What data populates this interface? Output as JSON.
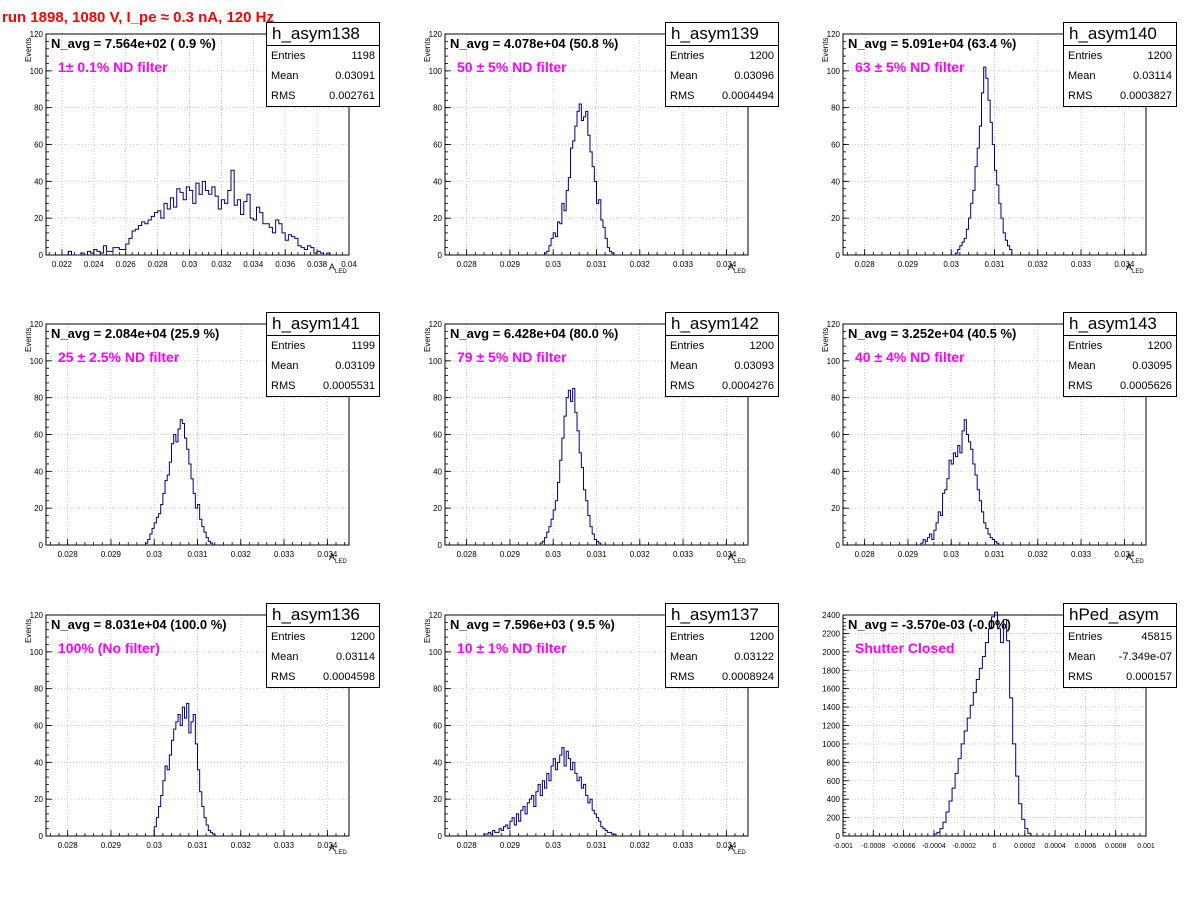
{
  "header": {
    "run_title": "run 1898,  1080 V, I_pe ≈ 0.3 nA, 120 Hz"
  },
  "colors": {
    "histogram_line": "#000080",
    "title": "#ff0000",
    "annotation": "#ff00ff",
    "grid": "#c0c0c0"
  },
  "chart_data": [
    {
      "type": "histogram",
      "name": "h_asym138",
      "stats": {
        "entries": "1198",
        "mean": "0.03091",
        "rms": "0.002761"
      },
      "navg_text": "N_avg = 7.564e+02 ( 0.9 %)",
      "filter_text": "1± 0.1% ND filter",
      "ylabel": "Events",
      "xlabel": "A",
      "xlabel_sub": "LED",
      "xlim": [
        0.021,
        0.04
      ],
      "ylim": [
        0,
        120
      ],
      "xticks": [
        0.022,
        0.024,
        0.026,
        0.028,
        0.03,
        0.032,
        0.034,
        0.036,
        0.038,
        0.04
      ],
      "xtick_labels": [
        "0.022",
        "0.024",
        "0.026",
        "0.028",
        "0.03",
        "0.032",
        "0.034",
        "0.036",
        "0.038",
        "0.04"
      ],
      "yticks": [
        0,
        20,
        40,
        60,
        80,
        100,
        120
      ],
      "ytick_labels": [
        "0",
        "20",
        "40",
        "60",
        "80",
        "100",
        "120"
      ],
      "x_start": 0.0224,
      "bin_width": 0.0002,
      "counts": [
        2,
        0,
        0,
        0,
        1,
        0,
        2,
        1,
        3,
        2,
        1,
        5,
        2,
        2,
        4,
        4,
        3,
        3,
        6,
        9,
        13,
        14,
        16,
        18,
        17,
        19,
        21,
        23,
        24,
        20,
        28,
        25,
        31,
        26,
        36,
        34,
        30,
        37,
        35,
        28,
        39,
        33,
        40,
        35,
        33,
        37,
        32,
        25,
        30,
        28,
        35,
        46,
        27,
        30,
        22,
        29,
        33,
        20,
        19,
        26,
        23,
        17,
        17,
        15,
        12,
        19,
        17,
        12,
        8,
        11,
        10,
        9,
        5,
        4,
        3,
        5,
        4,
        1,
        2,
        1,
        0,
        1
      ]
    },
    {
      "type": "histogram",
      "name": "h_asym139",
      "stats": {
        "entries": "1200",
        "mean": "0.03096",
        "rms": "0.0004494"
      },
      "navg_text": "N_avg = 4.078e+04 (50.8 %)",
      "filter_text": "50 ± 5% ND filter",
      "ylabel": "Events",
      "xlabel": "A",
      "xlabel_sub": "LED",
      "xlim": [
        0.0275,
        0.0345
      ],
      "ylim": [
        0,
        120
      ],
      "xticks": [
        0.028,
        0.029,
        0.03,
        0.031,
        0.032,
        0.033,
        0.034
      ],
      "xtick_labels": [
        "0.028",
        "0.029",
        "0.03",
        "0.031",
        "0.032",
        "0.033",
        "0.034"
      ],
      "yticks": [
        0,
        20,
        40,
        60,
        80,
        100,
        120
      ],
      "ytick_labels": [
        "0",
        "20",
        "40",
        "60",
        "80",
        "100",
        "120"
      ],
      "x_start": 0.0298,
      "bin_width": 5e-05,
      "counts": [
        1,
        2,
        5,
        9,
        12,
        10,
        18,
        17,
        28,
        24,
        35,
        42,
        58,
        62,
        70,
        78,
        82,
        73,
        75,
        78,
        65,
        56,
        48,
        40,
        28,
        30,
        19,
        15,
        9,
        4,
        2,
        1
      ]
    },
    {
      "type": "histogram",
      "name": "h_asym140",
      "stats": {
        "entries": "1200",
        "mean": "0.03114",
        "rms": "0.0003827"
      },
      "navg_text": "N_avg = 5.091e+04 (63.4 %)",
      "filter_text": "63 ± 5% ND filter",
      "ylabel": "Events",
      "xlabel": "A",
      "xlabel_sub": "LED",
      "xlim": [
        0.0275,
        0.0345
      ],
      "ylim": [
        0,
        120
      ],
      "xticks": [
        0.028,
        0.029,
        0.03,
        0.031,
        0.032,
        0.033,
        0.034
      ],
      "xtick_labels": [
        "0.028",
        "0.029",
        "0.03",
        "0.031",
        "0.032",
        "0.033",
        "0.034"
      ],
      "yticks": [
        0,
        20,
        40,
        60,
        80,
        100,
        120
      ],
      "ytick_labels": [
        "0",
        "20",
        "40",
        "60",
        "80",
        "100",
        "120"
      ],
      "x_start": 0.0301,
      "bin_width": 5e-05,
      "counts": [
        1,
        3,
        5,
        7,
        9,
        14,
        20,
        28,
        35,
        48,
        58,
        70,
        88,
        102,
        96,
        84,
        72,
        60,
        46,
        38,
        28,
        20,
        12,
        8,
        5,
        3
      ]
    },
    {
      "type": "histogram",
      "name": "h_asym141",
      "stats": {
        "entries": "1199",
        "mean": "0.03109",
        "rms": "0.0005531"
      },
      "navg_text": "N_avg = 2.084e+04 (25.9 %)",
      "filter_text": "25 ± 2.5% ND filter",
      "ylabel": "Events",
      "xlabel": "A",
      "xlabel_sub": "LED",
      "xlim": [
        0.0275,
        0.0345
      ],
      "ylim": [
        0,
        120
      ],
      "xticks": [
        0.028,
        0.029,
        0.03,
        0.031,
        0.032,
        0.033,
        0.034
      ],
      "xtick_labels": [
        "0.028",
        "0.029",
        "0.03",
        "0.031",
        "0.032",
        "0.033",
        "0.034"
      ],
      "yticks": [
        0,
        20,
        40,
        60,
        80,
        100,
        120
      ],
      "ytick_labels": [
        "0",
        "20",
        "40",
        "60",
        "80",
        "100",
        "120"
      ],
      "x_start": 0.0298,
      "bin_width": 5e-05,
      "counts": [
        1,
        3,
        6,
        9,
        12,
        15,
        17,
        22,
        28,
        35,
        38,
        45,
        55,
        60,
        56,
        63,
        68,
        66,
        58,
        52,
        44,
        36,
        28,
        20,
        22,
        14,
        10,
        7,
        4,
        2,
        1
      ]
    },
    {
      "type": "histogram",
      "name": "h_asym142",
      "stats": {
        "entries": "1200",
        "mean": "0.03093",
        "rms": "0.0004276"
      },
      "navg_text": "N_avg = 6.428e+04 (80.0 %)",
      "filter_text": "79 ± 5% ND filter",
      "ylabel": "Events",
      "xlabel": "A",
      "xlabel_sub": "LED",
      "xlim": [
        0.0275,
        0.0345
      ],
      "ylim": [
        0,
        120
      ],
      "xticks": [
        0.028,
        0.029,
        0.03,
        0.031,
        0.032,
        0.033,
        0.034
      ],
      "xtick_labels": [
        "0.028",
        "0.029",
        "0.03",
        "0.031",
        "0.032",
        "0.033",
        "0.034"
      ],
      "yticks": [
        0,
        20,
        40,
        60,
        80,
        100,
        120
      ],
      "ytick_labels": [
        "0",
        "20",
        "40",
        "60",
        "80",
        "100",
        "120"
      ],
      "x_start": 0.0297,
      "bin_width": 5e-05,
      "counts": [
        1,
        2,
        4,
        7,
        10,
        14,
        19,
        24,
        34,
        46,
        58,
        70,
        80,
        84,
        78,
        85,
        72,
        62,
        50,
        42,
        30,
        24,
        16,
        10,
        6,
        3,
        2,
        1
      ]
    },
    {
      "type": "histogram",
      "name": "h_asym143",
      "stats": {
        "entries": "1200",
        "mean": "0.03095",
        "rms": "0.0005626"
      },
      "navg_text": "N_avg = 3.252e+04 (40.5 %)",
      "filter_text": "40 ± 4% ND filter",
      "ylabel": "Events",
      "xlabel": "A",
      "xlabel_sub": "LED",
      "xlim": [
        0.0275,
        0.0345
      ],
      "ylim": [
        0,
        120
      ],
      "xticks": [
        0.028,
        0.029,
        0.03,
        0.031,
        0.032,
        0.033,
        0.034
      ],
      "xtick_labels": [
        "0.028",
        "0.029",
        "0.03",
        "0.031",
        "0.032",
        "0.033",
        "0.034"
      ],
      "yticks": [
        0,
        20,
        40,
        60,
        80,
        100,
        120
      ],
      "ytick_labels": [
        "0",
        "20",
        "40",
        "60",
        "80",
        "100",
        "120"
      ],
      "x_start": 0.0293,
      "bin_width": 5e-05,
      "counts": [
        1,
        3,
        2,
        4,
        6,
        3,
        8,
        12,
        18,
        16,
        28,
        30,
        36,
        46,
        44,
        50,
        48,
        54,
        50,
        62,
        68,
        60,
        56,
        52,
        44,
        38,
        30,
        24,
        18,
        12,
        9,
        6,
        4,
        3,
        2,
        1
      ]
    },
    {
      "type": "histogram",
      "name": "h_asym136",
      "stats": {
        "entries": "1200",
        "mean": "0.03114",
        "rms": "0.0004598"
      },
      "navg_text": "N_avg = 8.031e+04 (100.0 %)",
      "filter_text": "100% (No filter)",
      "ylabel": "Events",
      "xlabel": "A",
      "xlabel_sub": "LED",
      "xlim": [
        0.0275,
        0.0345
      ],
      "ylim": [
        0,
        120
      ],
      "xticks": [
        0.028,
        0.029,
        0.03,
        0.031,
        0.032,
        0.033,
        0.034
      ],
      "xtick_labels": [
        "0.028",
        "0.029",
        "0.03",
        "0.031",
        "0.032",
        "0.033",
        "0.034"
      ],
      "yticks": [
        0,
        20,
        40,
        60,
        80,
        100,
        120
      ],
      "ytick_labels": [
        "0",
        "20",
        "40",
        "60",
        "80",
        "100",
        "120"
      ],
      "x_start": 0.03,
      "bin_width": 5e-05,
      "counts": [
        5,
        10,
        16,
        22,
        30,
        38,
        36,
        44,
        52,
        58,
        62,
        66,
        60,
        70,
        64,
        72,
        56,
        62,
        66,
        50,
        36,
        24,
        16,
        10,
        6,
        3,
        2,
        1
      ]
    },
    {
      "type": "histogram",
      "name": "h_asym137",
      "stats": {
        "entries": "1200",
        "mean": "0.03122",
        "rms": "0.0008924"
      },
      "navg_text": "N_avg = 7.596e+03 ( 9.5 %)",
      "filter_text": "10 ± 1% ND filter",
      "ylabel": "Events",
      "xlabel": "A",
      "xlabel_sub": "LED",
      "xlim": [
        0.0275,
        0.0345
      ],
      "ylim": [
        0,
        120
      ],
      "xticks": [
        0.028,
        0.029,
        0.03,
        0.031,
        0.032,
        0.033,
        0.034
      ],
      "xtick_labels": [
        "0.028",
        "0.029",
        "0.03",
        "0.031",
        "0.032",
        "0.033",
        "0.034"
      ],
      "yticks": [
        0,
        20,
        40,
        60,
        80,
        100,
        120
      ],
      "ytick_labels": [
        "0",
        "20",
        "40",
        "60",
        "80",
        "100",
        "120"
      ],
      "x_start": 0.0284,
      "bin_width": 5e-05,
      "counts": [
        1,
        1,
        2,
        1,
        3,
        2,
        2,
        4,
        3,
        5,
        6,
        4,
        8,
        10,
        6,
        12,
        8,
        14,
        16,
        12,
        18,
        20,
        22,
        16,
        24,
        28,
        22,
        30,
        26,
        34,
        30,
        38,
        42,
        36,
        40,
        44,
        48,
        38,
        46,
        42,
        36,
        40,
        34,
        30,
        32,
        26,
        28,
        22,
        18,
        20,
        14,
        12,
        10,
        8,
        5,
        4,
        3,
        2,
        2,
        1,
        1
      ]
    },
    {
      "type": "histogram",
      "name": "hPed_asym",
      "stats": {
        "entries": "45815",
        "mean": "-7.349e-07",
        "rms": "0.000157"
      },
      "navg_text": "N_avg = -3.570e-03 (-0.0%)",
      "filter_text": "Shutter Closed",
      "ylabel": "",
      "xlabel": "",
      "xlabel_sub": "",
      "xlim": [
        -0.001,
        0.001
      ],
      "ylim": [
        0,
        2400
      ],
      "xticks": [
        -0.001,
        -0.0008,
        -0.0006,
        -0.0004,
        -0.0002,
        0,
        0.0002,
        0.0004,
        0.0006,
        0.0008,
        0.001
      ],
      "xtick_labels": [
        "-0.001",
        "-0.0008",
        "-0.0006",
        "-0.0004",
        "-0.0002",
        "0",
        "0.0002",
        "0.0004",
        "0.0006",
        "0.0008",
        "0.001"
      ],
      "yticks": [
        0,
        200,
        400,
        600,
        800,
        1000,
        1200,
        1400,
        1600,
        1800,
        2000,
        2200,
        2400
      ],
      "ytick_labels": [
        "0",
        "200",
        "400",
        "600",
        "800",
        "1000",
        "1200",
        "1400",
        "1600",
        "1800",
        "2000",
        "2200",
        "2400"
      ],
      "x_start": -0.0004,
      "bin_width": 2e-05,
      "counts": [
        20,
        40,
        80,
        150,
        260,
        380,
        520,
        680,
        840,
        1000,
        1140,
        1280,
        1420,
        1560,
        1700,
        1820,
        1950,
        2100,
        2250,
        2380,
        2430,
        2250,
        2100,
        2350,
        2120,
        1500,
        1000,
        650,
        350,
        180,
        80,
        30
      ]
    }
  ]
}
